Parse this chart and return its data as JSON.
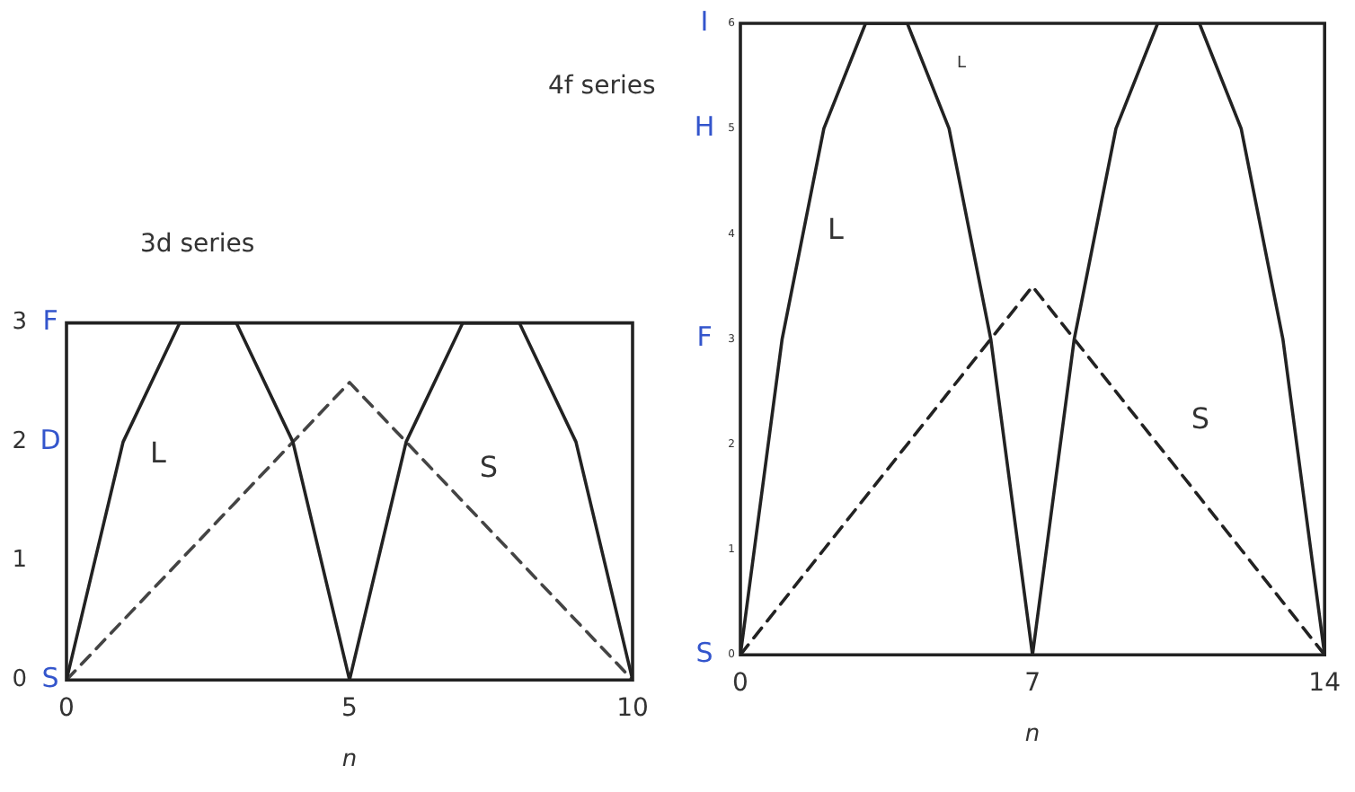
{
  "chart_data": [
    {
      "type": "line",
      "title": "3d series",
      "xlabel": "n",
      "x": [
        0,
        1,
        2,
        3,
        4,
        5,
        6,
        7,
        8,
        9,
        10
      ],
      "xlim": [
        0,
        10
      ],
      "xticks": [
        0,
        5,
        10
      ],
      "ylim": [
        0,
        3
      ],
      "yticks": [
        0,
        1,
        2,
        3
      ],
      "marker": "none",
      "series": [
        {
          "name": "L",
          "color": "#222222",
          "line_style": "solid",
          "values": [
            0,
            2,
            3,
            3,
            2,
            0,
            2,
            3,
            3,
            2,
            0
          ]
        },
        {
          "name": "S",
          "color": "#444444",
          "line_style": "dashed",
          "values": [
            0,
            0.5,
            1,
            1.5,
            2,
            2.5,
            2,
            1.5,
            1,
            0.5,
            0
          ]
        }
      ],
      "annotations": [
        "S",
        "D",
        "F"
      ]
    },
    {
      "type": "line",
      "title": "4f series",
      "xlabel": "n",
      "x": [
        0,
        1,
        2,
        3,
        4,
        5,
        6,
        7,
        8,
        9,
        10,
        11,
        12,
        13,
        14
      ],
      "xlim": [
        0,
        14
      ],
      "xticks": [
        0,
        7,
        14
      ],
      "ylim": [
        0,
        6
      ],
      "yticks": [
        0,
        1,
        2,
        3,
        4,
        5,
        6
      ],
      "marker": "none",
      "series": [
        {
          "name": "L",
          "color": "#222222",
          "line_style": "solid",
          "values": [
            0,
            3,
            5,
            6,
            6,
            5,
            3,
            0,
            3,
            5,
            6,
            6,
            5,
            3,
            0
          ]
        },
        {
          "name": "S",
          "color": "#222222",
          "line_style": "dashed",
          "values": [
            0,
            0.5,
            1,
            1.5,
            2,
            2.5,
            3,
            3.5,
            3,
            2.5,
            2,
            1.5,
            1,
            0.5,
            0
          ]
        }
      ],
      "annotations": [
        "L",
        "S",
        "F",
        "H",
        "I"
      ]
    }
  ]
}
